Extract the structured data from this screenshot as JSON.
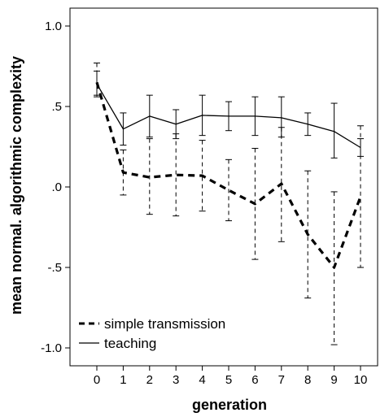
{
  "chart_data": {
    "type": "line",
    "xlabel": "generation",
    "ylabel": "mean normal. algorithmic complexity",
    "x": [
      0,
      1,
      2,
      3,
      4,
      5,
      6,
      7,
      8,
      9,
      10
    ],
    "x_tick_labels": [
      "0",
      "1",
      "2",
      "3",
      "4",
      "5",
      "6",
      "7",
      "8",
      "9",
      "10"
    ],
    "y_ticks": [
      1.0,
      0.5,
      0.0,
      -0.5,
      -1.0
    ],
    "y_tick_labels": [
      "1.0",
      ".5",
      ".0",
      "-.5",
      "-1.0"
    ],
    "xlim": [
      -1,
      11.2
    ],
    "ylim": [
      -1.1,
      1.12
    ],
    "grid": false,
    "legend_position": "bottom-left",
    "error_bars": true,
    "series": [
      {
        "name": "simple transmission",
        "style": "dashed",
        "values": [
          0.65,
          0.09,
          0.06,
          0.075,
          0.07,
          -0.02,
          -0.105,
          0.02,
          -0.295,
          -0.5,
          -0.06
        ],
        "err_low": [
          0.56,
          -0.05,
          -0.17,
          -0.18,
          -0.15,
          -0.21,
          -0.45,
          -0.34,
          -0.69,
          -0.98,
          -0.5
        ],
        "err_high": [
          0.77,
          0.23,
          0.3,
          0.33,
          0.29,
          0.17,
          0.24,
          0.37,
          0.1,
          -0.03,
          0.38
        ]
      },
      {
        "name": "teaching",
        "style": "solid",
        "values": [
          0.64,
          0.36,
          0.44,
          0.39,
          0.445,
          0.44,
          0.44,
          0.43,
          0.39,
          0.345,
          0.245
        ],
        "err_low": [
          0.57,
          0.26,
          0.31,
          0.3,
          0.32,
          0.35,
          0.32,
          0.31,
          0.32,
          0.18,
          0.19
        ],
        "err_high": [
          0.72,
          0.46,
          0.57,
          0.48,
          0.57,
          0.53,
          0.56,
          0.56,
          0.46,
          0.52,
          0.3
        ]
      }
    ]
  }
}
